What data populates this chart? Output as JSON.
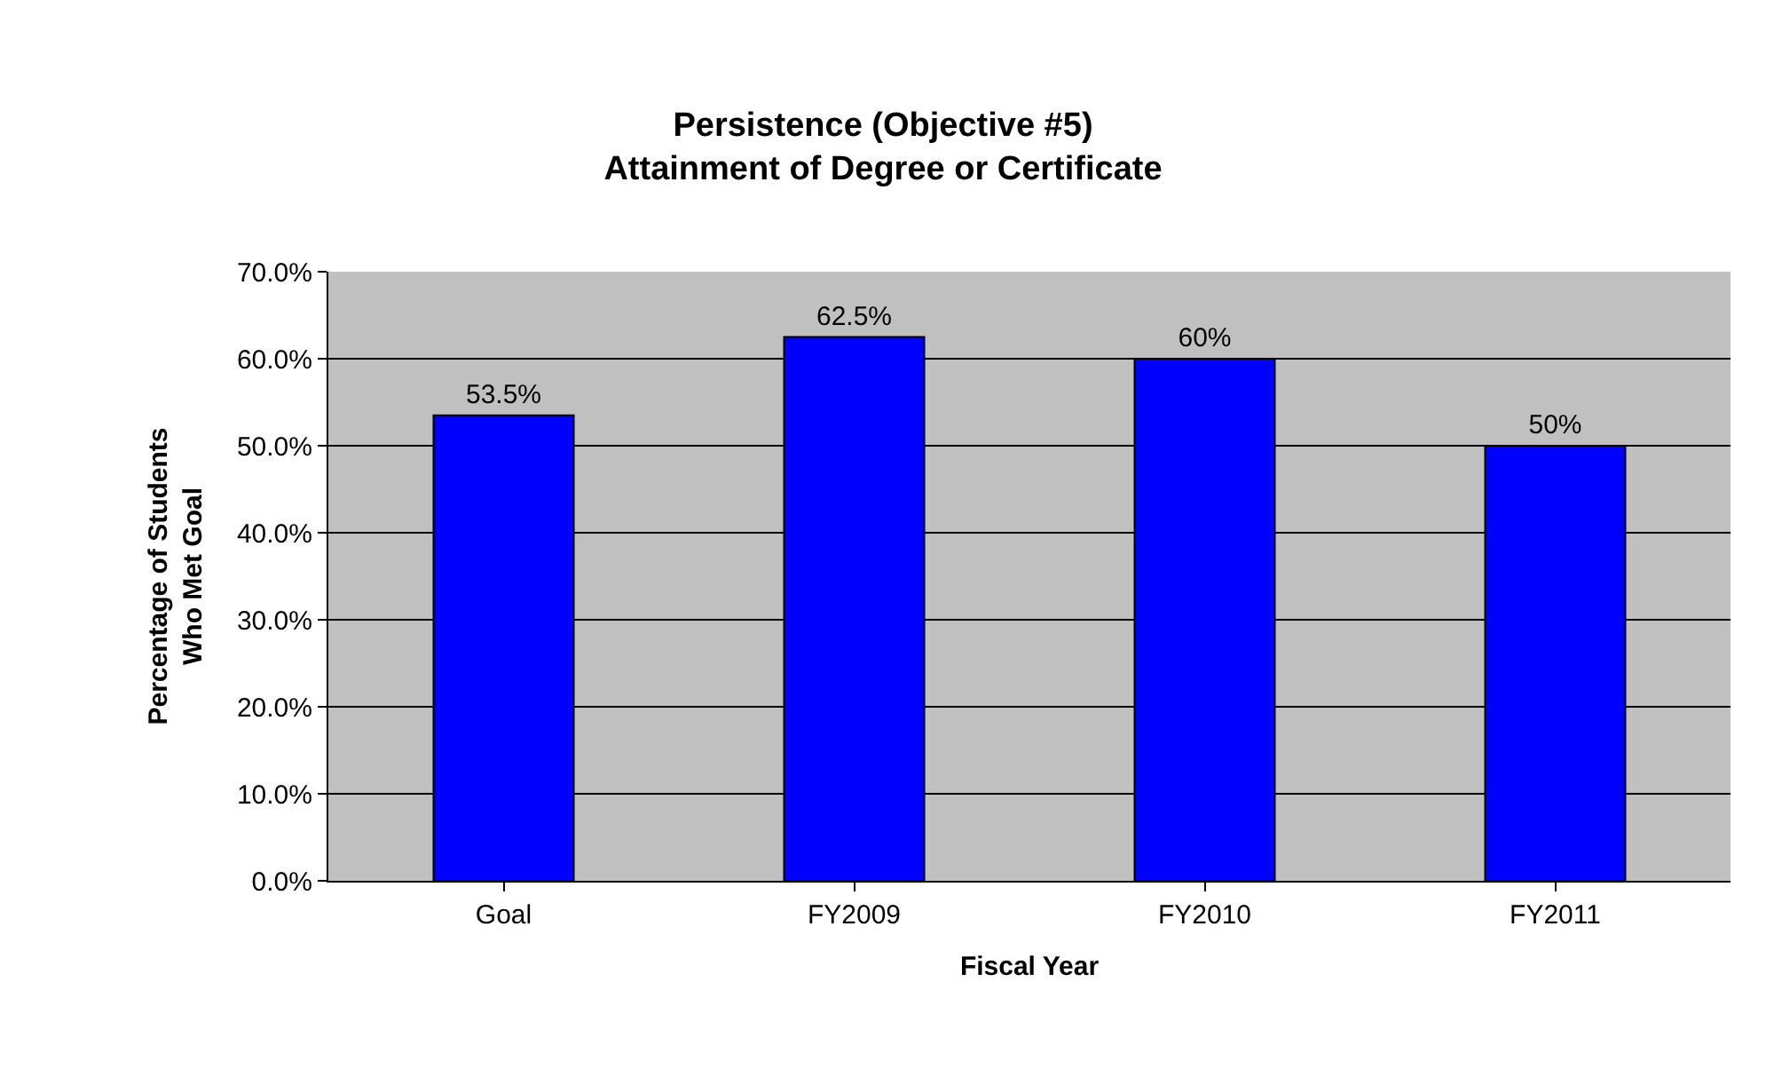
{
  "chart_data": {
    "type": "bar",
    "title": "Persistence (Objective #5)\nAttainment of Degree or Certificate",
    "xlabel": "Fiscal Year",
    "ylabel": "Percentage of Students\nWho Met Goal",
    "categories": [
      "Goal",
      "FY2009",
      "FY2010",
      "FY2011"
    ],
    "values": [
      53.5,
      62.5,
      60,
      50
    ],
    "value_labels": [
      "53.5%",
      "62.5%",
      "60%",
      "50%"
    ],
    "color": "#0000ff",
    "ylim": [
      0,
      70
    ],
    "yticks": [
      {
        "value": 0,
        "label": "0.0%"
      },
      {
        "value": 10,
        "label": "10.0%"
      },
      {
        "value": 20,
        "label": "20.0%"
      },
      {
        "value": 30,
        "label": "30.0%"
      },
      {
        "value": 40,
        "label": "40.0%"
      },
      {
        "value": 50,
        "label": "50.0%"
      },
      {
        "value": 60,
        "label": "60.0%"
      },
      {
        "value": 70,
        "label": "70.0%"
      }
    ],
    "grid": "y"
  }
}
